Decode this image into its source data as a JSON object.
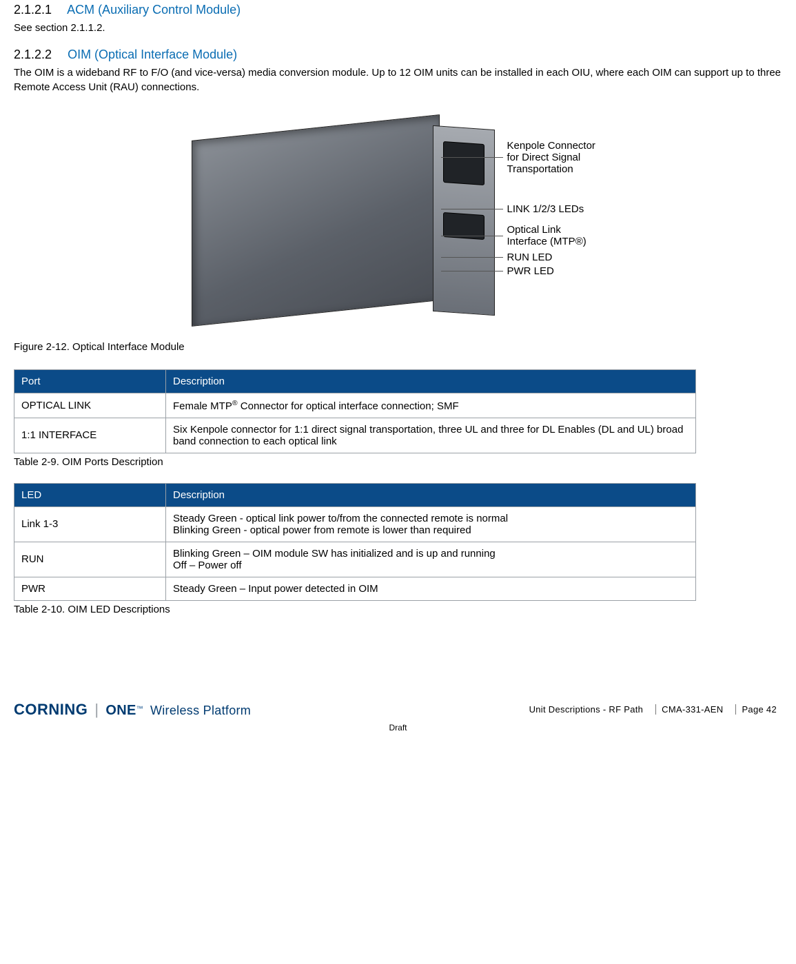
{
  "colors": {
    "heading_link": "#0a6db3",
    "table_header_bg": "#0b4b88",
    "table_header_fg": "#ffffff",
    "table_border": "#9aa0a6",
    "brand_color": "#003b71"
  },
  "typography": {
    "body_font": "Arial",
    "body_size_pt": 11,
    "heading_size_pt": 14
  },
  "section1": {
    "number": "2.1.2.1",
    "title": "ACM (Auxiliary Control Module)",
    "body": "See section 2.1.1.2."
  },
  "section2": {
    "number": "2.1.2.2",
    "title": "OIM (Optical Interface Module)",
    "body": "The OIM is a wideband RF to F/O (and vice-versa) media conversion module. Up to 12 OIM units can be installed in each OIU, where each OIM can support up to three Remote Access Unit (RAU) connections."
  },
  "figure": {
    "caption": "Figure 2-12. Optical Interface Module",
    "callouts": {
      "c1_l1": "Kenpole Connector",
      "c1_l2": "for Direct Signal",
      "c1_l3": "Transportation",
      "c2": "LINK 1/2/3 LEDs",
      "c3_l1": "Optical Link",
      "c3_l2": "Interface (MTP®)",
      "c4": "RUN LED",
      "c5": "PWR LED"
    }
  },
  "table_ports": {
    "title": "Table 2-9. OIM Ports Description",
    "header": {
      "col1": "Port",
      "col2": "Description"
    },
    "rows": [
      {
        "c1": "OPTICAL LINK",
        "c2_pre": "Female MTP",
        "c2_sup": "®",
        "c2_post": " Connector for optical interface connection; SMF"
      },
      {
        "c1": "1:1 INTERFACE",
        "c2_pre": "Six Kenpole connector for 1:1 direct signal transportation, three UL and three for DL Enables (DL and UL) broad band connection to each optical link",
        "c2_sup": "",
        "c2_post": ""
      }
    ]
  },
  "table_leds": {
    "title": "Table 2-10. OIM LED Descriptions",
    "header": {
      "col1": "LED",
      "col2": "Description"
    },
    "rows": [
      {
        "c1": "Link 1-3",
        "c2a": "Steady Green - optical link power to/from the connected remote is normal",
        "c2b": "Blinking Green - optical power from remote is lower than required"
      },
      {
        "c1": "RUN",
        "c2a": "Blinking Green – OIM module SW has initialized and is up and running",
        "c2b": "Off – Power off"
      },
      {
        "c1": "PWR",
        "c2a": "Steady Green – Input power detected in OIM",
        "c2b": ""
      }
    ]
  },
  "footer": {
    "brand1": "CORNING",
    "brand2": "ONE",
    "brand_tm": "™",
    "brand3": "Wireless Platform",
    "section": "Unit Descriptions - RF Path",
    "doc": "CMA-331-AEN",
    "page": "Page 42",
    "draft": "Draft"
  }
}
